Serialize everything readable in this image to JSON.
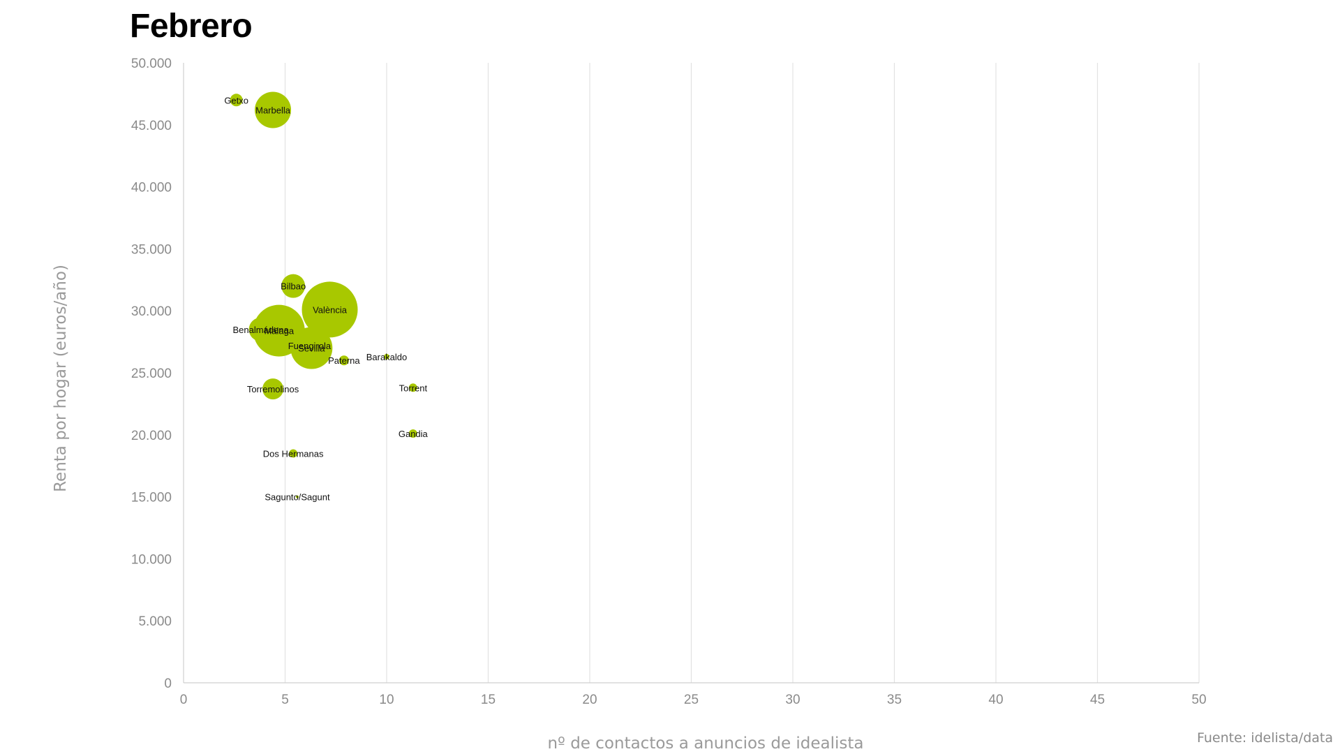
{
  "chart_data": {
    "type": "scatter",
    "title": "Febrero",
    "xlabel": "nº de contactos a anuncios de idealista",
    "ylabel": "Renta por hogar (euros/año)",
    "xlim": [
      0,
      50
    ],
    "ylim": [
      0,
      50000
    ],
    "x_ticks": [
      "0",
      "5",
      "10",
      "15",
      "20",
      "25",
      "30",
      "35",
      "40",
      "45",
      "50"
    ],
    "y_ticks": [
      "0",
      "5.000",
      "10.000",
      "15.000",
      "20.000",
      "25.000",
      "30.000",
      "35.000",
      "40.000",
      "45.000",
      "50.000"
    ],
    "grid": "vertical",
    "color": "#a8c800",
    "points": [
      {
        "label": "Getxo",
        "x": 2.6,
        "y": 47000,
        "size": 9
      },
      {
        "label": "Marbella",
        "x": 4.4,
        "y": 46200,
        "size": 26
      },
      {
        "label": "Bilbao",
        "x": 5.4,
        "y": 32000,
        "size": 17
      },
      {
        "label": "València",
        "x": 7.2,
        "y": 30100,
        "size": 40
      },
      {
        "label": "Málaga",
        "x": 4.7,
        "y": 28400,
        "size": 37
      },
      {
        "label": "Benalmádena",
        "x": 3.8,
        "y": 28500,
        "size": 17
      },
      {
        "label": "Fuengirola",
        "x": 6.2,
        "y": 27200,
        "size": 10
      },
      {
        "label": "Sevilla",
        "x": 6.3,
        "y": 27000,
        "size": 30
      },
      {
        "label": "Paterna",
        "x": 7.9,
        "y": 26000,
        "size": 7
      },
      {
        "label": "Barakaldo",
        "x": 10.0,
        "y": 26300,
        "size": 4
      },
      {
        "label": "Torremolinos",
        "x": 4.4,
        "y": 23700,
        "size": 15
      },
      {
        "label": "Torrent",
        "x": 11.3,
        "y": 23800,
        "size": 6
      },
      {
        "label": "Gandia",
        "x": 11.3,
        "y": 20100,
        "size": 6
      },
      {
        "label": "Dos Hermanas",
        "x": 5.4,
        "y": 18500,
        "size": 6
      },
      {
        "label": "Sagunto/Sagunt",
        "x": 5.6,
        "y": 15000,
        "size": 2
      }
    ]
  },
  "source": "Fuente: idelista/data"
}
